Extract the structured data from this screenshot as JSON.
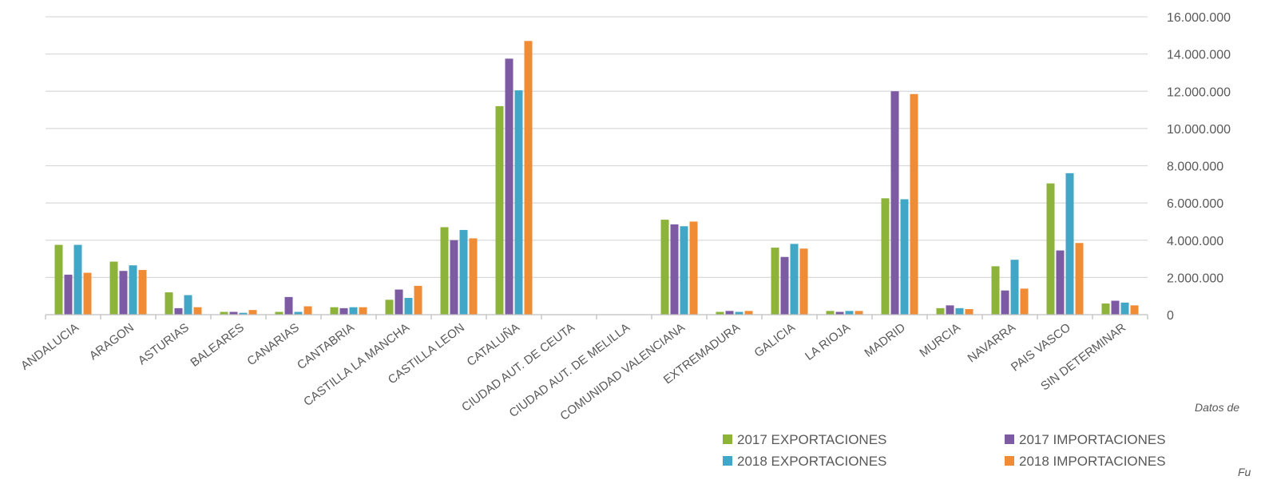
{
  "chart_data": {
    "type": "bar",
    "categories": [
      "ANDALUCIA",
      "ARAGON",
      "ASTURIAS",
      "BALEARES",
      "CANARIAS",
      "CANTABRIA",
      "CASTILLA LA MANCHA",
      "CASTILLA LEON",
      "CATALUÑA",
      "CIUDAD AUT. DE CEUTA",
      "CIUDAD AUT. DE MELILLA",
      "COMUNIDAD VALENCIANA",
      "EXTREMADURA",
      "GALICIA",
      "LA RIOJA",
      "MADRID",
      "MURCIA",
      "NAVARRA",
      "PAIS VASCO",
      "SIN DETERMINAR"
    ],
    "series": [
      {
        "name": "2017 EXPORTACIONES",
        "color": "#8db33b",
        "values": [
          3750000,
          2850000,
          1200000,
          150000,
          150000,
          400000,
          800000,
          4700000,
          11200000,
          0,
          0,
          5100000,
          150000,
          3600000,
          200000,
          6250000,
          350000,
          2600000,
          7050000,
          600000
        ]
      },
      {
        "name": "2017 IMPORTACIONES",
        "color": "#7c5ba3",
        "values": [
          2150000,
          2350000,
          350000,
          150000,
          950000,
          350000,
          1350000,
          4000000,
          13750000,
          0,
          0,
          4850000,
          200000,
          3100000,
          150000,
          12000000,
          500000,
          1300000,
          3450000,
          750000
        ]
      },
      {
        "name": "2018 EXPORTACIONES",
        "color": "#42a6c6",
        "values": [
          3750000,
          2650000,
          1050000,
          100000,
          150000,
          400000,
          900000,
          4550000,
          12050000,
          0,
          0,
          4750000,
          150000,
          3800000,
          200000,
          6200000,
          350000,
          2950000,
          7600000,
          650000
        ]
      },
      {
        "name": "2018 IMPORTACIONES",
        "color": "#f08c35",
        "values": [
          2250000,
          2400000,
          400000,
          250000,
          450000,
          400000,
          1550000,
          4100000,
          14700000,
          0,
          0,
          5000000,
          200000,
          3550000,
          200000,
          11850000,
          300000,
          1400000,
          3850000,
          500000
        ]
      }
    ],
    "yticks": [
      "0",
      "2.000.000",
      "4.000.000",
      "6.000.000",
      "8.000.000",
      "10.000.000",
      "12.000.000",
      "14.000.000",
      "16.000.000"
    ],
    "ylim": [
      0,
      16000000
    ],
    "grid": true,
    "y_axis_side": "right",
    "legend_placement": "bottom",
    "notes": [
      "Datos de",
      "Fu"
    ]
  }
}
